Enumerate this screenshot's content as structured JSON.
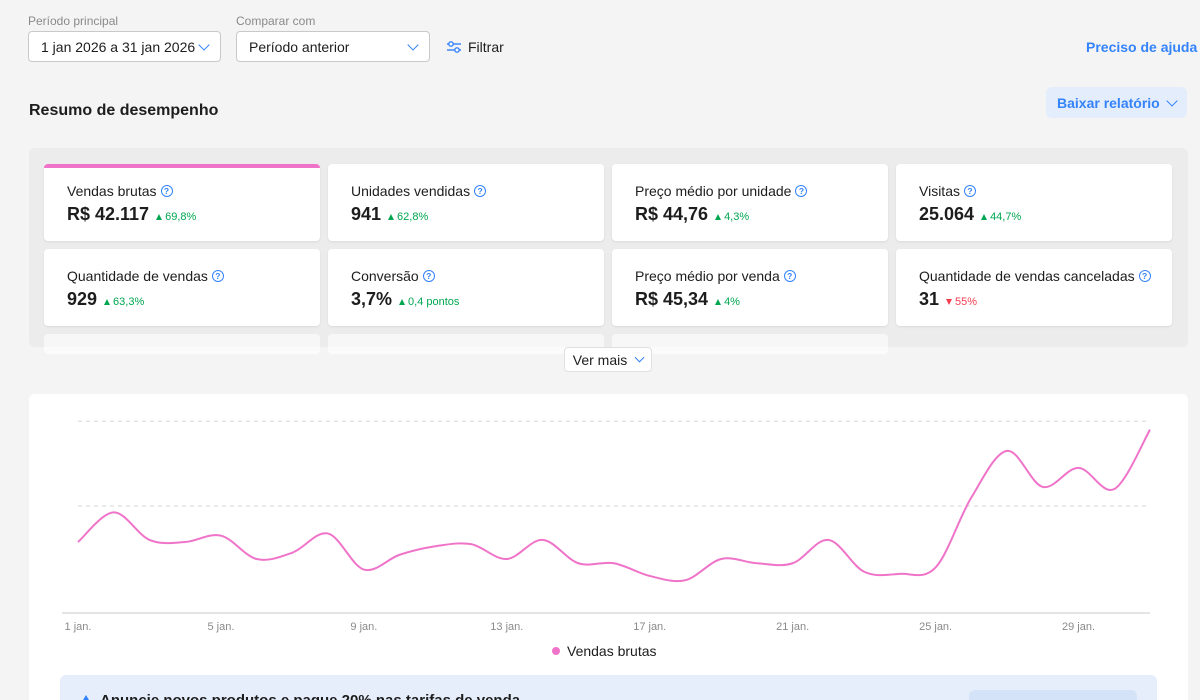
{
  "filters": {
    "main_period_label": "Período principal",
    "main_period_value": "1 jan 2026 a 31 jan 2026",
    "compare_label": "Comparar com",
    "compare_value": "Período anterior",
    "filter_label": "Filtrar",
    "help_link": "Preciso de ajuda"
  },
  "summary": {
    "title": "Resumo de desempenho",
    "download_label": "Baixar relatório"
  },
  "metrics": [
    {
      "label": "Vendas brutas",
      "value": "R$ 42.117",
      "delta": "69,8%",
      "trend": "up",
      "active": true
    },
    {
      "label": "Unidades vendidas",
      "value": "941",
      "delta": "62,8%",
      "trend": "up"
    },
    {
      "label": "Preço médio por unidade",
      "value": "R$ 44,76",
      "delta": "4,3%",
      "trend": "up"
    },
    {
      "label": "Visitas",
      "value": "25.064",
      "delta": "44,7%",
      "trend": "up"
    },
    {
      "label": "Quantidade de vendas",
      "value": "929",
      "delta": "63,3%",
      "trend": "up"
    },
    {
      "label": "Conversão",
      "value": "3,7%",
      "delta": "0,4 pontos",
      "trend": "up"
    },
    {
      "label": "Preço médio por venda",
      "value": "R$ 45,34",
      "delta": "4%",
      "trend": "up"
    },
    {
      "label": "Quantidade de vendas canceladas",
      "value": "31",
      "delta": "55%",
      "trend": "down"
    }
  ],
  "see_more_label": "Ver mais",
  "chart_data": {
    "type": "line",
    "x": [
      "1 jan.",
      "2 jan.",
      "3 jan.",
      "4 jan.",
      "5 jan.",
      "6 jan.",
      "7 jan.",
      "8 jan.",
      "9 jan.",
      "10 jan.",
      "11 jan.",
      "12 jan.",
      "13 jan.",
      "14 jan.",
      "15 jan.",
      "16 jan.",
      "17 jan.",
      "18 jan.",
      "19 jan.",
      "20 jan.",
      "21 jan.",
      "22 jan.",
      "23 jan.",
      "24 jan.",
      "25 jan.",
      "26 jan.",
      "27 jan.",
      "28 jan.",
      "29 jan.",
      "30 jan.",
      "31 jan."
    ],
    "x_tick_labels": [
      "1 jan.",
      "5 jan.",
      "9 jan.",
      "13 jan.",
      "17 jan.",
      "21 jan.",
      "25 jan.",
      "29 jan."
    ],
    "series": [
      {
        "name": "Vendas brutas",
        "values": [
          33,
          47,
          34,
          33,
          36,
          25,
          28,
          37,
          20,
          27,
          31,
          32,
          25,
          34,
          23,
          23,
          17,
          15,
          25,
          23,
          23,
          34,
          19,
          18,
          21,
          54,
          76,
          59,
          68,
          58,
          86
        ]
      }
    ],
    "ylim": [
      0,
      100
    ],
    "y_gridlines": [
      50,
      90
    ],
    "grid": true,
    "legend_position": "bottom-center",
    "colors": {
      "line": "#ef74c9",
      "grid": "#d5d5d5",
      "axis": "#c8c8c8",
      "tick": "#8a8a8a"
    }
  },
  "promo": {
    "text": "Anuncie novos produtos e pague 20% nas tarifas de venda"
  }
}
